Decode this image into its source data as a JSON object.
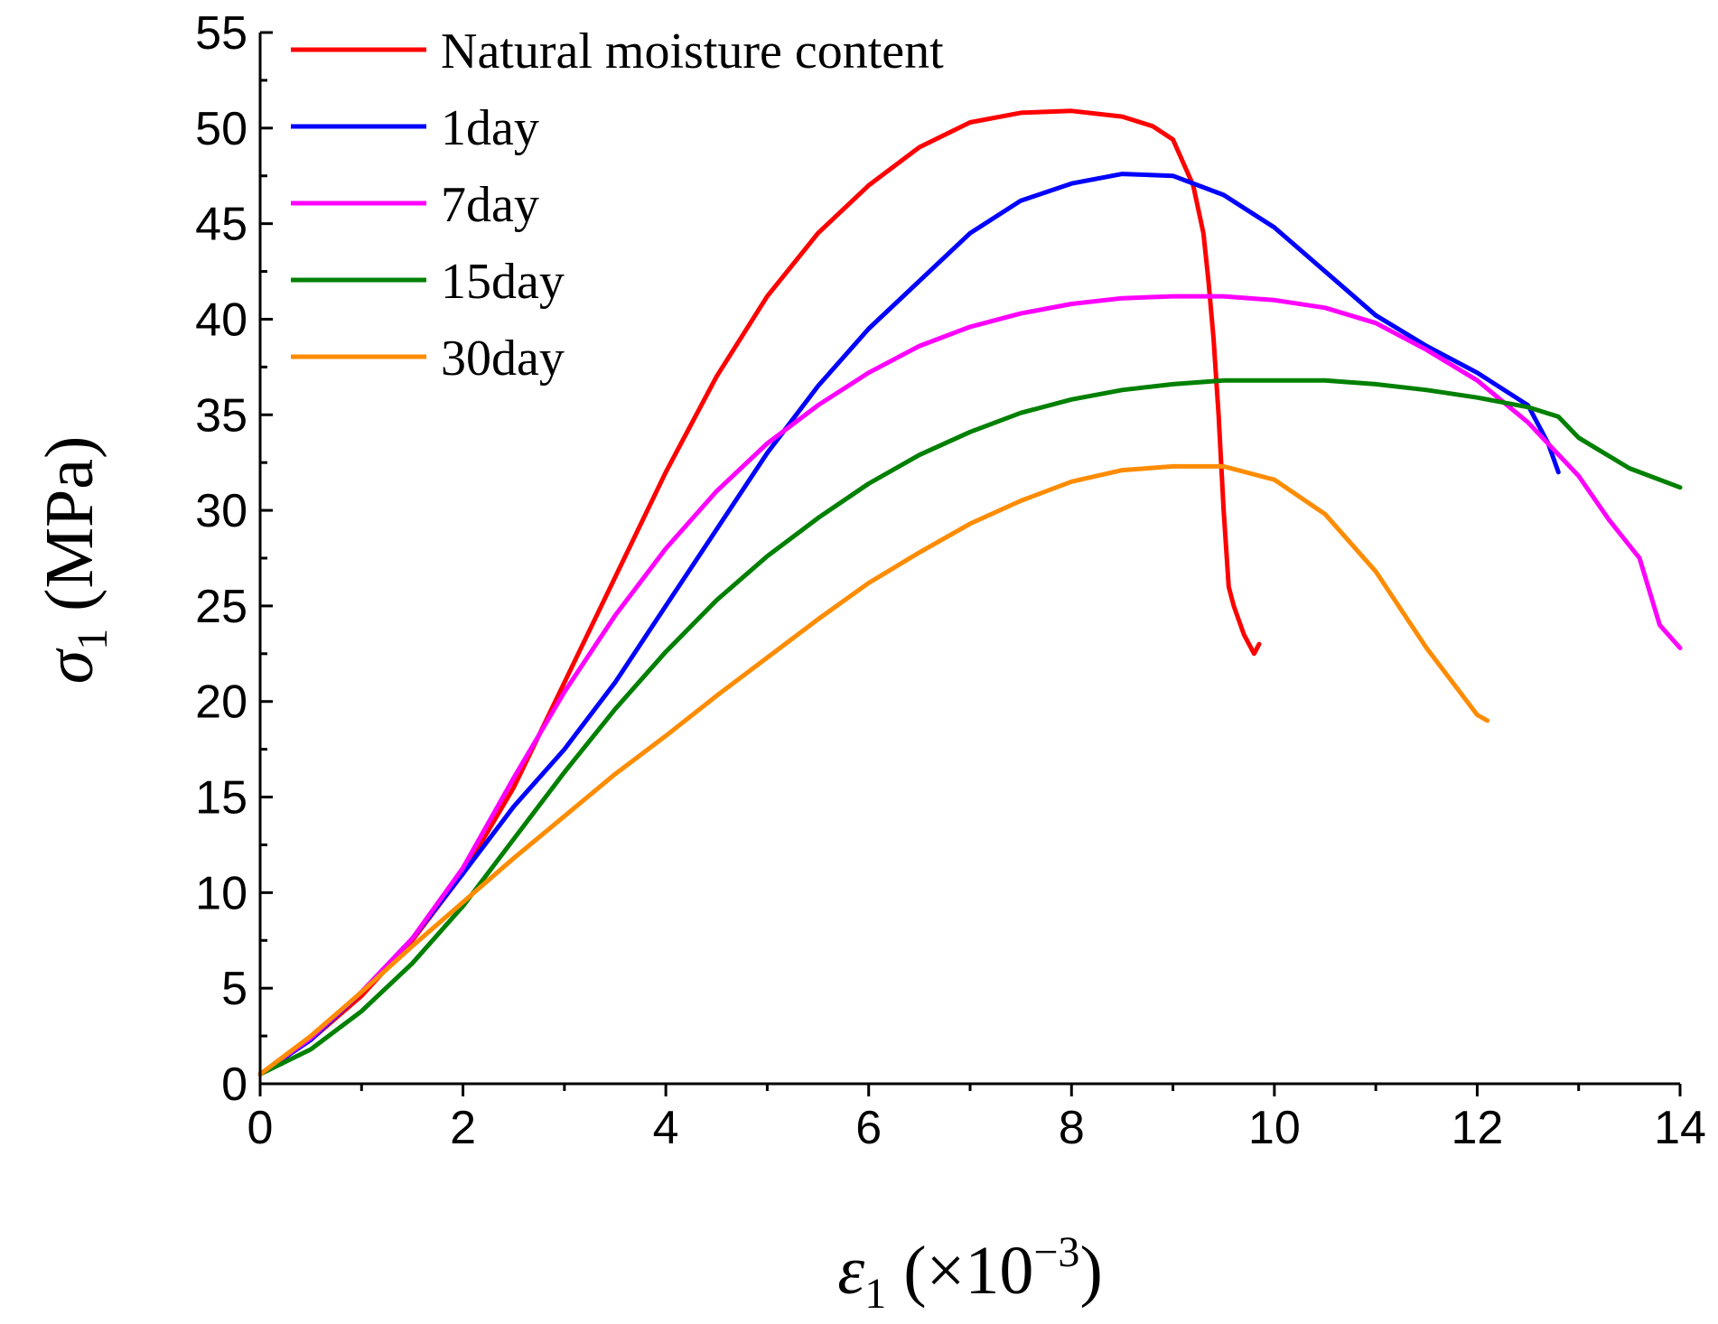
{
  "chart_data": {
    "type": "line",
    "title": "",
    "xlabel": {
      "symbol": "ε",
      "sub": "1",
      "unit_prefix": " (×10",
      "exp": "−3",
      "unit_suffix": ")"
    },
    "ylabel": {
      "symbol": "σ",
      "sub": "1",
      "unit": " (MPa)"
    },
    "xlim": [
      0,
      14
    ],
    "ylim": [
      0,
      55
    ],
    "xticks": [
      0,
      2,
      4,
      6,
      8,
      10,
      12,
      14
    ],
    "yticks": [
      0,
      5,
      10,
      15,
      20,
      25,
      30,
      35,
      40,
      45,
      50,
      55
    ],
    "xtick_labels": [
      "0",
      "2",
      "4",
      "6",
      "8",
      "10",
      "12",
      "14"
    ],
    "ytick_labels": [
      "0",
      "5",
      "10",
      "15",
      "20",
      "25",
      "30",
      "35",
      "40",
      "45",
      "50",
      "55"
    ],
    "grid": false,
    "legend_position": "top-left",
    "series": [
      {
        "name": "Natural moisture content",
        "color": "#ff0000",
        "x": [
          0,
          0.5,
          1.0,
          1.5,
          2.0,
          2.5,
          3.0,
          3.5,
          4.0,
          4.5,
          5.0,
          5.5,
          6.0,
          6.5,
          7.0,
          7.5,
          8.0,
          8.5,
          8.8,
          9.0,
          9.1,
          9.2,
          9.3,
          9.35,
          9.4,
          9.45,
          9.5,
          9.55,
          9.6,
          9.7,
          9.8,
          9.85
        ],
        "y": [
          0.5,
          2.3,
          4.6,
          7.5,
          11.0,
          15.5,
          21.0,
          26.5,
          32.0,
          37.0,
          41.2,
          44.5,
          47.0,
          49.0,
          50.3,
          50.8,
          50.9,
          50.6,
          50.1,
          49.4,
          48.2,
          47.0,
          44.5,
          42.0,
          39.0,
          35.0,
          30.0,
          26.0,
          25.0,
          23.5,
          22.5,
          23.0
        ]
      },
      {
        "name": "1day",
        "color": "#0000ff",
        "x": [
          0,
          0.5,
          1.0,
          1.5,
          2.0,
          2.5,
          3.0,
          3.5,
          4.0,
          4.5,
          5.0,
          5.5,
          6.0,
          6.5,
          7.0,
          7.5,
          8.0,
          8.5,
          9.0,
          9.5,
          10.0,
          10.5,
          11.0,
          11.5,
          12.0,
          12.5,
          12.7,
          12.8
        ],
        "y": [
          0.5,
          2.3,
          4.8,
          7.6,
          11.0,
          14.5,
          17.5,
          21.0,
          25.0,
          29.0,
          33.0,
          36.5,
          39.5,
          42.0,
          44.5,
          46.2,
          47.1,
          47.6,
          47.5,
          46.5,
          44.8,
          42.5,
          40.2,
          38.6,
          37.2,
          35.5,
          33.5,
          32.0
        ]
      },
      {
        "name": "7day",
        "color": "#ff00ff",
        "x": [
          0,
          0.5,
          1.0,
          1.5,
          2.0,
          2.5,
          3.0,
          3.5,
          4.0,
          4.5,
          5.0,
          5.5,
          6.0,
          6.5,
          7.0,
          7.5,
          8.0,
          8.5,
          9.0,
          9.5,
          10.0,
          10.5,
          11.0,
          11.5,
          12.0,
          12.5,
          13.0,
          13.3,
          13.6,
          13.8,
          14.0
        ],
        "y": [
          0.5,
          2.4,
          4.8,
          7.6,
          11.3,
          16.0,
          20.5,
          24.5,
          28.0,
          31.0,
          33.5,
          35.5,
          37.2,
          38.6,
          39.6,
          40.3,
          40.8,
          41.1,
          41.2,
          41.2,
          41.0,
          40.6,
          39.8,
          38.4,
          36.8,
          34.6,
          31.8,
          29.5,
          27.5,
          24.0,
          22.8
        ]
      },
      {
        "name": "15day",
        "color": "#008000",
        "x": [
          0,
          0.5,
          1.0,
          1.5,
          2.0,
          2.5,
          3.0,
          3.5,
          4.0,
          4.5,
          5.0,
          5.5,
          6.0,
          6.5,
          7.0,
          7.5,
          8.0,
          8.5,
          9.0,
          9.5,
          10.0,
          10.5,
          11.0,
          11.5,
          12.0,
          12.5,
          12.8,
          13.0,
          13.5,
          14.0
        ],
        "y": [
          0.5,
          1.8,
          3.8,
          6.3,
          9.3,
          12.8,
          16.3,
          19.6,
          22.6,
          25.3,
          27.6,
          29.6,
          31.4,
          32.9,
          34.1,
          35.1,
          35.8,
          36.3,
          36.6,
          36.8,
          36.8,
          36.8,
          36.6,
          36.3,
          35.9,
          35.4,
          34.9,
          33.8,
          32.2,
          31.2
        ]
      },
      {
        "name": "30day",
        "color": "#ff8c00",
        "x": [
          0,
          0.5,
          1.0,
          1.5,
          2.0,
          2.5,
          3.0,
          3.5,
          4.0,
          4.5,
          5.0,
          5.5,
          6.0,
          6.5,
          7.0,
          7.5,
          8.0,
          8.5,
          9.0,
          9.5,
          10.0,
          10.5,
          11.0,
          11.5,
          12.0,
          12.1
        ],
        "y": [
          0.5,
          2.5,
          4.8,
          7.2,
          9.5,
          11.8,
          14.0,
          16.2,
          18.2,
          20.3,
          22.3,
          24.3,
          26.2,
          27.8,
          29.3,
          30.5,
          31.5,
          32.1,
          32.3,
          32.3,
          31.6,
          29.8,
          26.8,
          22.8,
          19.3,
          19.0
        ]
      }
    ]
  }
}
